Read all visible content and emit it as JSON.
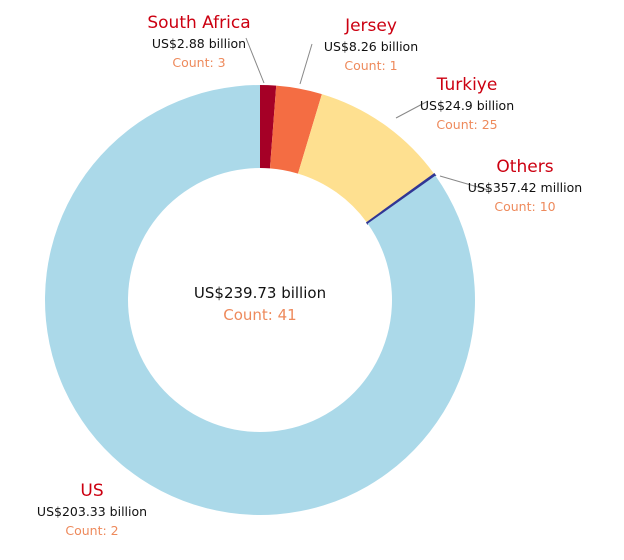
{
  "chart_data": {
    "type": "pie",
    "subtype": "donut",
    "total_label": "US$239.73 billion",
    "total_count_label": "Count: 41",
    "slices": [
      {
        "name": "South Africa",
        "value": 2.88,
        "value_label": "US$2.88 billion",
        "count_label": "Count: 3",
        "color": "#a50026"
      },
      {
        "name": "Jersey",
        "value": 8.26,
        "value_label": "US$8.26 billion",
        "count_label": "Count: 1",
        "color": "#f46d43"
      },
      {
        "name": "Turkiye",
        "value": 24.9,
        "value_label": "US$24.9 billion",
        "count_label": "Count: 25",
        "color": "#fee090"
      },
      {
        "name": "Others",
        "value": 0.35742,
        "value_label": "US$357.42 million",
        "count_label": "Count: 10",
        "color": "#313695"
      },
      {
        "name": "US",
        "value": 203.33,
        "value_label": "US$203.33 billion",
        "count_label": "Count: 2",
        "color": "#abd9e9"
      }
    ]
  }
}
